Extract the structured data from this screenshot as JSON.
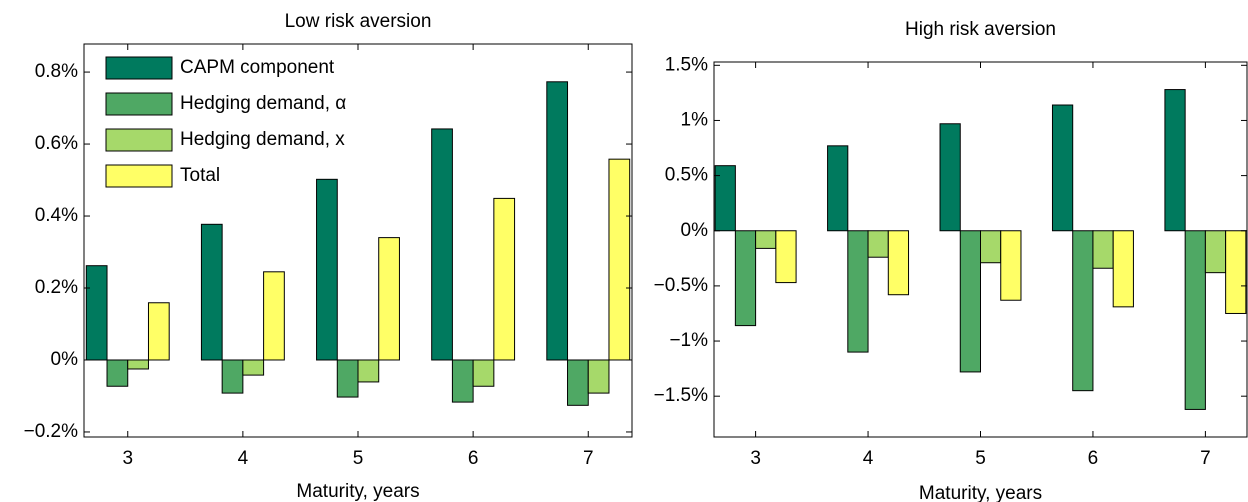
{
  "chart_data": [
    {
      "type": "bar",
      "title": "Low risk aversion",
      "x_label": "Maturity, years",
      "x": [
        3,
        4,
        5,
        6,
        7
      ],
      "xlim": [
        2.62,
        7.38
      ],
      "xticks": [
        3,
        4,
        5,
        6,
        7
      ],
      "ylim": [
        -0.214,
        0.878
      ],
      "yticks": [
        {
          "value": -0.2,
          "label": "−0.2%"
        },
        {
          "value": 0,
          "label": "0%"
        },
        {
          "value": 0.2,
          "label": "0.2%"
        },
        {
          "value": 0.4,
          "label": "0.4%"
        },
        {
          "value": 0.6,
          "label": "0.6%"
        },
        {
          "value": 0.8,
          "label": "0.8%"
        }
      ],
      "legend": "upper left",
      "series": [
        {
          "name": "CAPM component",
          "color": "#007a5e",
          "values": [
            0.262,
            0.377,
            0.502,
            0.642,
            0.773
          ]
        },
        {
          "name": "Hedging demand, α",
          "color": "#4fa864",
          "values": [
            -0.073,
            -0.092,
            -0.103,
            -0.117,
            -0.126
          ]
        },
        {
          "name": "Hedging demand, x",
          "color": "#a6d96a",
          "values": [
            -0.025,
            -0.042,
            -0.061,
            -0.073,
            -0.092
          ]
        },
        {
          "name": "Total",
          "color": "#ffff66",
          "values": [
            0.159,
            0.245,
            0.34,
            0.449,
            0.558
          ]
        }
      ]
    },
    {
      "type": "bar",
      "title": "High risk aversion",
      "x_label": "Maturity, years",
      "x": [
        3,
        4,
        5,
        6,
        7
      ],
      "xlim": [
        2.63,
        7.37
      ],
      "xticks": [
        3,
        4,
        5,
        6,
        7
      ],
      "ylim": [
        -1.87,
        1.53
      ],
      "yticks": [
        {
          "value": -1.5,
          "label": "−1.5%"
        },
        {
          "value": -1,
          "label": "−1%"
        },
        {
          "value": -0.5,
          "label": "−0.5%"
        },
        {
          "value": 0,
          "label": "0%"
        },
        {
          "value": 0.5,
          "label": "0.5%"
        },
        {
          "value": 1,
          "label": "1%"
        },
        {
          "value": 1.5,
          "label": "1.5%"
        }
      ],
      "series": [
        {
          "color": "#007a5e",
          "values": [
            0.59,
            0.77,
            0.97,
            1.14,
            1.28
          ]
        },
        {
          "color": "#4fa864",
          "values": [
            -0.86,
            -1.1,
            -1.28,
            -1.45,
            -1.62
          ]
        },
        {
          "color": "#a6d96a",
          "values": [
            -0.16,
            -0.24,
            -0.29,
            -0.34,
            -0.38
          ]
        },
        {
          "color": "#ffff66",
          "values": [
            -0.47,
            -0.58,
            -0.63,
            -0.69,
            -0.75
          ]
        }
      ]
    }
  ]
}
